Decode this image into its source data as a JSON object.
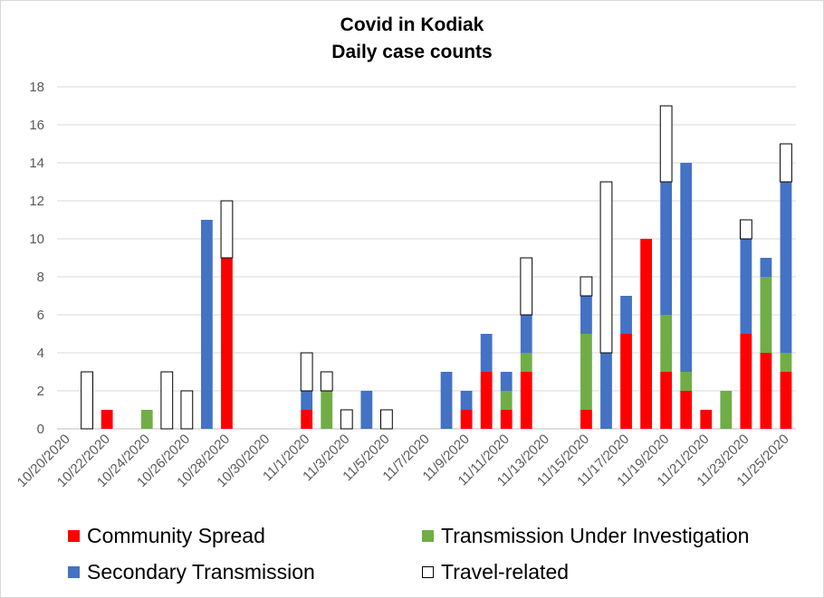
{
  "chart_data": {
    "type": "bar",
    "stacked": true,
    "title": "Covid in Kodiak",
    "subtitle": "Daily case counts",
    "xlabel": "",
    "ylabel": "",
    "ylim": [
      0,
      18
    ],
    "yticks": [
      0,
      2,
      4,
      6,
      8,
      10,
      12,
      14,
      16,
      18
    ],
    "grid": true,
    "legend_position": "bottom",
    "categories": [
      "10/20/2020",
      "10/21/2020",
      "10/22/2020",
      "10/23/2020",
      "10/24/2020",
      "10/25/2020",
      "10/26/2020",
      "10/27/2020",
      "10/28/2020",
      "10/29/2020",
      "10/30/2020",
      "10/31/2020",
      "11/1/2020",
      "11/2/2020",
      "11/3/2020",
      "11/4/2020",
      "11/5/2020",
      "11/6/2020",
      "11/7/2020",
      "11/8/2020",
      "11/9/2020",
      "11/10/2020",
      "11/11/2020",
      "11/12/2020",
      "11/13/2020",
      "11/14/2020",
      "11/15/2020",
      "11/16/2020",
      "11/17/2020",
      "11/18/2020",
      "11/19/2020",
      "11/20/2020",
      "11/21/2020",
      "11/22/2020",
      "11/23/2020",
      "11/24/2020",
      "11/25/2020"
    ],
    "tick_labels": [
      "10/20/2020",
      "10/22/2020",
      "10/24/2020",
      "10/26/2020",
      "10/28/2020",
      "10/30/2020",
      "11/1/2020",
      "11/3/2020",
      "11/5/2020",
      "11/7/2020",
      "11/9/2020",
      "11/11/2020",
      "11/13/2020",
      "11/15/2020",
      "11/17/2020",
      "11/19/2020",
      "11/21/2020",
      "11/23/2020",
      "11/25/2020"
    ],
    "series": [
      {
        "name": "Community Spread",
        "color": "#ff0000",
        "fill": true,
        "values": [
          0,
          0,
          1,
          0,
          0,
          0,
          0,
          0,
          9,
          0,
          0,
          0,
          1,
          0,
          0,
          0,
          0,
          0,
          0,
          0,
          1,
          3,
          1,
          3,
          0,
          0,
          1,
          0,
          5,
          10,
          3,
          2,
          1,
          0,
          5,
          4,
          3
        ]
      },
      {
        "name": "Transmission Under Investigation",
        "color": "#70ad47",
        "fill": true,
        "values": [
          0,
          0,
          0,
          0,
          1,
          0,
          0,
          0,
          0,
          0,
          0,
          0,
          0,
          2,
          0,
          0,
          0,
          0,
          0,
          0,
          0,
          0,
          1,
          1,
          0,
          0,
          4,
          0,
          0,
          0,
          3,
          1,
          0,
          2,
          0,
          4,
          1
        ]
      },
      {
        "name": "Secondary Transmission",
        "color": "#4472c4",
        "fill": true,
        "values": [
          0,
          0,
          0,
          0,
          0,
          0,
          0,
          11,
          0,
          0,
          0,
          0,
          1,
          0,
          0,
          2,
          0,
          0,
          0,
          3,
          1,
          2,
          1,
          2,
          0,
          0,
          2,
          4,
          2,
          0,
          7,
          11,
          0,
          0,
          5,
          1,
          9
        ]
      },
      {
        "name": "Travel-related",
        "color": "#000000",
        "fill": false,
        "values": [
          0,
          3,
          0,
          0,
          0,
          3,
          2,
          0,
          3,
          0,
          0,
          0,
          2,
          1,
          1,
          0,
          1,
          0,
          0,
          0,
          0,
          0,
          0,
          3,
          0,
          0,
          1,
          9,
          0,
          0,
          4,
          0,
          0,
          0,
          1,
          0,
          2
        ]
      }
    ]
  }
}
